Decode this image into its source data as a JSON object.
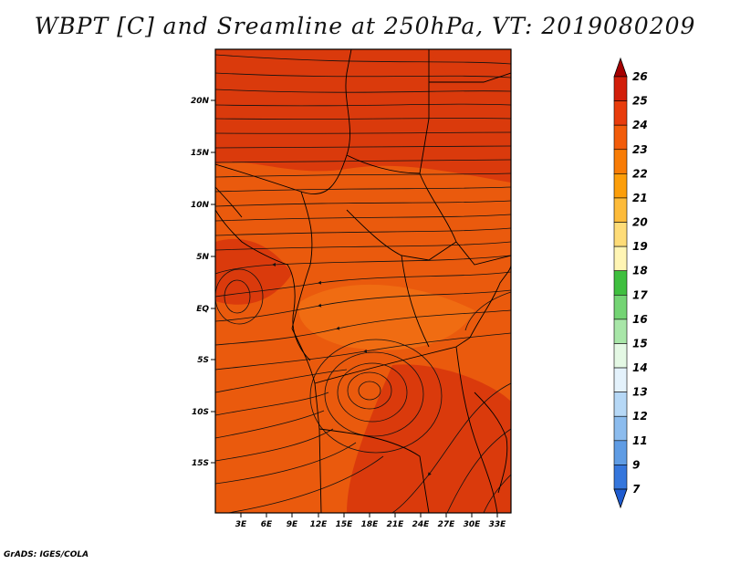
{
  "title": "WBPT [C] and Sreamline at 250hPa, VT: 2019080209",
  "credit": "GrADS: IGES/COLA",
  "lat_labels": [
    "20N",
    "15N",
    "10N",
    "5N",
    "EQ",
    "5S",
    "10S",
    "15S"
  ],
  "lon_labels": [
    "3E",
    "6E",
    "9E",
    "12E",
    "15E",
    "18E",
    "21E",
    "24E",
    "27E",
    "30E",
    "33E"
  ],
  "colorbar": {
    "labels": [
      "26",
      "25",
      "24",
      "23",
      "22",
      "21",
      "20",
      "19",
      "18",
      "17",
      "16",
      "15",
      "14",
      "13",
      "12",
      "11",
      "9",
      "7"
    ],
    "colors": [
      "#a50000",
      "#d21e0a",
      "#e83c0c",
      "#f25c0a",
      "#f87c06",
      "#fc9e0a",
      "#fdbb3a",
      "#fedc78",
      "#fff5b4",
      "#3fbf3f",
      "#74d474",
      "#a8e6a8",
      "#e4f8e4",
      "#e4f2fc",
      "#b6d8f6",
      "#8cbcee",
      "#5f9ce4",
      "#3576dc",
      "#1f5cd0"
    ]
  },
  "fill_colors": {
    "base": "#ea5a0d",
    "dark": "#da3a0c",
    "light": "#f06c12"
  }
}
